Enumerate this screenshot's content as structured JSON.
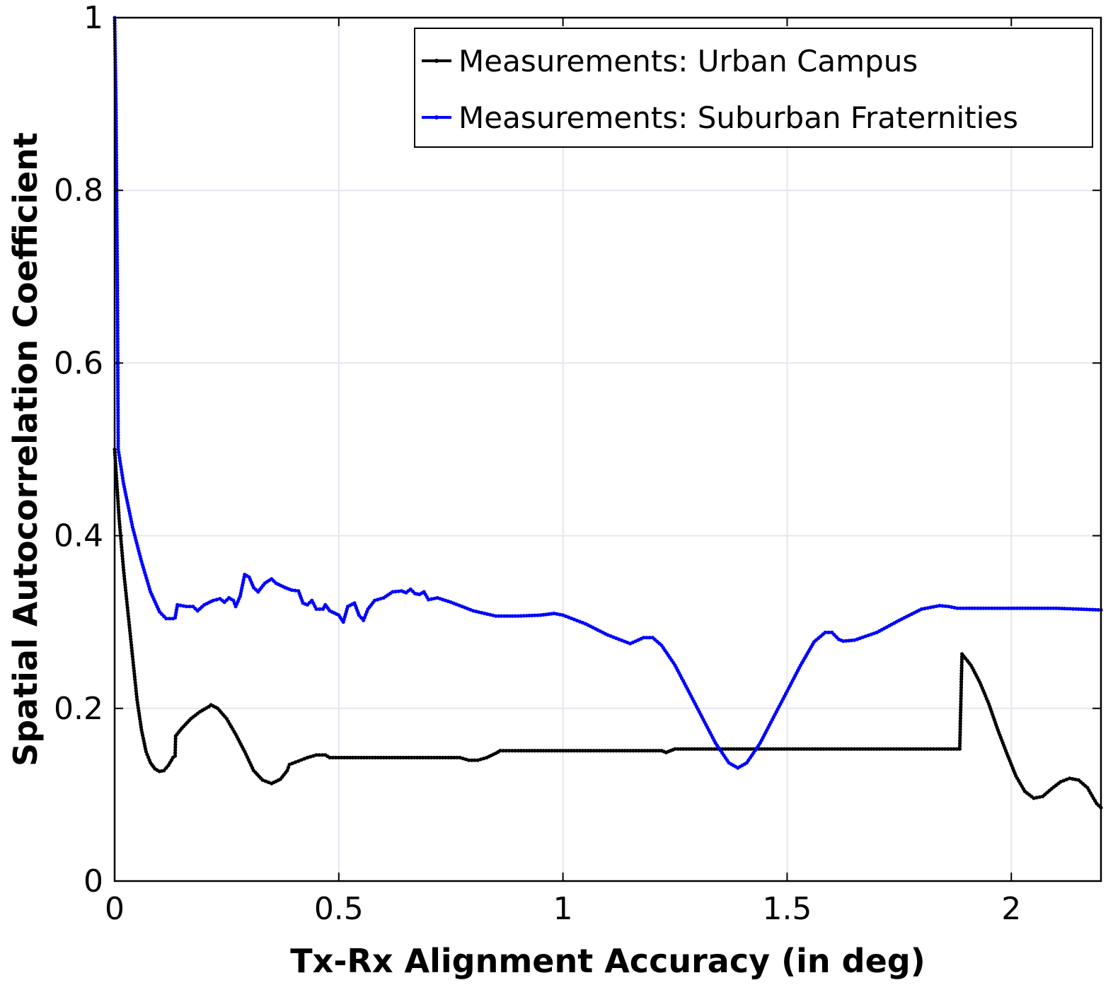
{
  "chart_data": {
    "type": "line",
    "title": "",
    "xlabel": "Tx-Rx Alignment Accuracy (in deg)",
    "ylabel": "Spatial Autocorrelation Coefficient",
    "xlim": [
      0,
      2.2
    ],
    "ylim": [
      0,
      1
    ],
    "x_ticks": [
      0,
      0.5,
      1,
      1.5,
      2
    ],
    "x_tick_labels": [
      "0",
      "0.5",
      "1",
      "1.5",
      "2"
    ],
    "y_ticks": [
      0,
      0.2,
      0.4,
      0.6,
      0.8,
      1
    ],
    "y_tick_labels": [
      "0",
      "0.2",
      "0.4",
      "0.6",
      "0.8",
      "1"
    ],
    "grid": true,
    "legend_position": "top-right",
    "series": [
      {
        "name": "Measurements: Urban Campus",
        "color": "#000000",
        "points": [
          [
            0.0,
            0.5
          ],
          [
            0.01,
            0.42
          ],
          [
            0.02,
            0.36
          ],
          [
            0.03,
            0.31
          ],
          [
            0.04,
            0.26
          ],
          [
            0.05,
            0.21
          ],
          [
            0.06,
            0.175
          ],
          [
            0.07,
            0.15
          ],
          [
            0.08,
            0.137
          ],
          [
            0.09,
            0.13
          ],
          [
            0.1,
            0.127
          ],
          [
            0.11,
            0.128
          ],
          [
            0.12,
            0.134
          ],
          [
            0.13,
            0.143
          ],
          [
            0.135,
            0.145
          ],
          [
            0.136,
            0.168
          ],
          [
            0.15,
            0.177
          ],
          [
            0.17,
            0.188
          ],
          [
            0.19,
            0.196
          ],
          [
            0.21,
            0.202
          ],
          [
            0.215,
            0.204
          ],
          [
            0.23,
            0.2
          ],
          [
            0.25,
            0.188
          ],
          [
            0.27,
            0.17
          ],
          [
            0.29,
            0.15
          ],
          [
            0.31,
            0.128
          ],
          [
            0.33,
            0.117
          ],
          [
            0.35,
            0.113
          ],
          [
            0.37,
            0.118
          ],
          [
            0.385,
            0.128
          ],
          [
            0.39,
            0.135
          ],
          [
            0.41,
            0.139
          ],
          [
            0.43,
            0.143
          ],
          [
            0.45,
            0.146
          ],
          [
            0.47,
            0.146
          ],
          [
            0.48,
            0.143
          ],
          [
            0.5,
            0.143
          ],
          [
            0.6,
            0.143
          ],
          [
            0.7,
            0.143
          ],
          [
            0.77,
            0.143
          ],
          [
            0.79,
            0.14
          ],
          [
            0.81,
            0.14
          ],
          [
            0.83,
            0.143
          ],
          [
            0.85,
            0.148
          ],
          [
            0.86,
            0.151
          ],
          [
            0.9,
            0.151
          ],
          [
            1.0,
            0.151
          ],
          [
            1.1,
            0.151
          ],
          [
            1.22,
            0.151
          ],
          [
            1.23,
            0.149
          ],
          [
            1.24,
            0.151
          ],
          [
            1.25,
            0.153
          ],
          [
            1.4,
            0.153
          ],
          [
            1.6,
            0.153
          ],
          [
            1.8,
            0.153
          ],
          [
            1.885,
            0.153
          ],
          [
            1.89,
            0.263
          ],
          [
            1.91,
            0.25
          ],
          [
            1.93,
            0.23
          ],
          [
            1.95,
            0.205
          ],
          [
            1.97,
            0.175
          ],
          [
            1.99,
            0.148
          ],
          [
            2.01,
            0.122
          ],
          [
            2.03,
            0.104
          ],
          [
            2.05,
            0.096
          ],
          [
            2.07,
            0.098
          ],
          [
            2.09,
            0.107
          ],
          [
            2.11,
            0.115
          ],
          [
            2.13,
            0.119
          ],
          [
            2.15,
            0.117
          ],
          [
            2.17,
            0.108
          ],
          [
            2.19,
            0.09
          ],
          [
            2.2,
            0.085
          ]
        ]
      },
      {
        "name": "Measurements: Suburban Fraternities",
        "color": "#0000ff",
        "points": [
          [
            0.0,
            1.0
          ],
          [
            0.003,
            0.9
          ],
          [
            0.006,
            0.7
          ],
          [
            0.008,
            0.5
          ],
          [
            0.02,
            0.46
          ],
          [
            0.04,
            0.41
          ],
          [
            0.06,
            0.37
          ],
          [
            0.08,
            0.335
          ],
          [
            0.1,
            0.312
          ],
          [
            0.115,
            0.304
          ],
          [
            0.13,
            0.304
          ],
          [
            0.135,
            0.305
          ],
          [
            0.14,
            0.32
          ],
          [
            0.16,
            0.318
          ],
          [
            0.175,
            0.318
          ],
          [
            0.185,
            0.313
          ],
          [
            0.2,
            0.32
          ],
          [
            0.22,
            0.325
          ],
          [
            0.235,
            0.327
          ],
          [
            0.245,
            0.323
          ],
          [
            0.255,
            0.328
          ],
          [
            0.265,
            0.325
          ],
          [
            0.27,
            0.318
          ],
          [
            0.28,
            0.33
          ],
          [
            0.29,
            0.355
          ],
          [
            0.3,
            0.352
          ],
          [
            0.31,
            0.34
          ],
          [
            0.32,
            0.335
          ],
          [
            0.335,
            0.345
          ],
          [
            0.35,
            0.35
          ],
          [
            0.36,
            0.345
          ],
          [
            0.38,
            0.34
          ],
          [
            0.395,
            0.337
          ],
          [
            0.41,
            0.336
          ],
          [
            0.42,
            0.322
          ],
          [
            0.43,
            0.32
          ],
          [
            0.44,
            0.325
          ],
          [
            0.45,
            0.315
          ],
          [
            0.465,
            0.315
          ],
          [
            0.47,
            0.32
          ],
          [
            0.48,
            0.313
          ],
          [
            0.5,
            0.308
          ],
          [
            0.51,
            0.3
          ],
          [
            0.52,
            0.318
          ],
          [
            0.535,
            0.322
          ],
          [
            0.545,
            0.308
          ],
          [
            0.555,
            0.302
          ],
          [
            0.565,
            0.315
          ],
          [
            0.58,
            0.325
          ],
          [
            0.6,
            0.328
          ],
          [
            0.62,
            0.335
          ],
          [
            0.64,
            0.336
          ],
          [
            0.65,
            0.334
          ],
          [
            0.66,
            0.338
          ],
          [
            0.67,
            0.333
          ],
          [
            0.68,
            0.332
          ],
          [
            0.69,
            0.335
          ],
          [
            0.7,
            0.326
          ],
          [
            0.72,
            0.328
          ],
          [
            0.75,
            0.323
          ],
          [
            0.8,
            0.313
          ],
          [
            0.85,
            0.307
          ],
          [
            0.9,
            0.307
          ],
          [
            0.95,
            0.308
          ],
          [
            0.98,
            0.31
          ],
          [
            1.0,
            0.308
          ],
          [
            1.05,
            0.298
          ],
          [
            1.1,
            0.285
          ],
          [
            1.15,
            0.275
          ],
          [
            1.18,
            0.282
          ],
          [
            1.2,
            0.282
          ],
          [
            1.22,
            0.273
          ],
          [
            1.25,
            0.25
          ],
          [
            1.28,
            0.22
          ],
          [
            1.31,
            0.19
          ],
          [
            1.34,
            0.16
          ],
          [
            1.37,
            0.137
          ],
          [
            1.39,
            0.131
          ],
          [
            1.41,
            0.137
          ],
          [
            1.44,
            0.16
          ],
          [
            1.47,
            0.19
          ],
          [
            1.5,
            0.22
          ],
          [
            1.53,
            0.25
          ],
          [
            1.56,
            0.277
          ],
          [
            1.585,
            0.288
          ],
          [
            1.6,
            0.288
          ],
          [
            1.615,
            0.28
          ],
          [
            1.625,
            0.278
          ],
          [
            1.65,
            0.279
          ],
          [
            1.7,
            0.288
          ],
          [
            1.75,
            0.302
          ],
          [
            1.8,
            0.315
          ],
          [
            1.84,
            0.319
          ],
          [
            1.86,
            0.318
          ],
          [
            1.88,
            0.316
          ],
          [
            1.9,
            0.316
          ],
          [
            2.0,
            0.316
          ],
          [
            2.1,
            0.316
          ],
          [
            2.2,
            0.314
          ]
        ]
      }
    ]
  }
}
